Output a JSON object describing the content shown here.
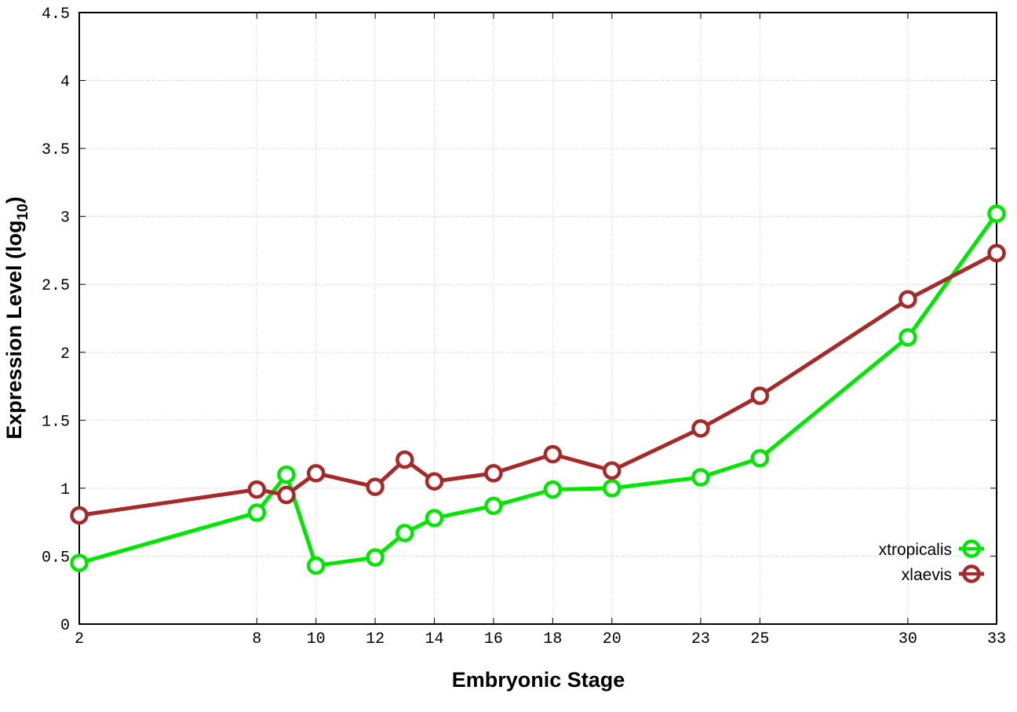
{
  "chart_data": {
    "type": "line",
    "title": "",
    "xlabel": "Embryonic Stage",
    "ylabel": "Expression Level (log",
    "ylabel_sub": "10",
    "ylabel_end": ")",
    "xlim": [
      2,
      33
    ],
    "ylim": [
      0,
      4.5
    ],
    "x": [
      2,
      8,
      9,
      10,
      12,
      13,
      14,
      16,
      18,
      20,
      23,
      25,
      30,
      33
    ],
    "xticks": [
      2,
      8,
      10,
      12,
      14,
      16,
      18,
      20,
      23,
      25,
      30,
      33
    ],
    "yticks": [
      0,
      0.5,
      1,
      1.5,
      2,
      2.5,
      3,
      3.5,
      4,
      4.5
    ],
    "ytick_labels": [
      "0",
      "0.5",
      "1",
      "1.5",
      "2",
      "2.5",
      "3",
      "3.5",
      "4",
      "4.5"
    ],
    "grid": true,
    "legend_position": "bottom-right",
    "series": [
      {
        "name": "xtropicalis",
        "color": "#00e600",
        "values": [
          0.45,
          0.82,
          1.1,
          0.43,
          0.49,
          0.67,
          0.78,
          0.87,
          0.99,
          1.0,
          1.08,
          1.22,
          2.11,
          3.02
        ]
      },
      {
        "name": "xlaevis",
        "color": "#a52a2a",
        "values": [
          0.8,
          0.99,
          0.95,
          1.11,
          1.01,
          1.21,
          1.05,
          1.11,
          1.25,
          1.13,
          1.44,
          1.68,
          2.39,
          2.73
        ]
      }
    ]
  }
}
